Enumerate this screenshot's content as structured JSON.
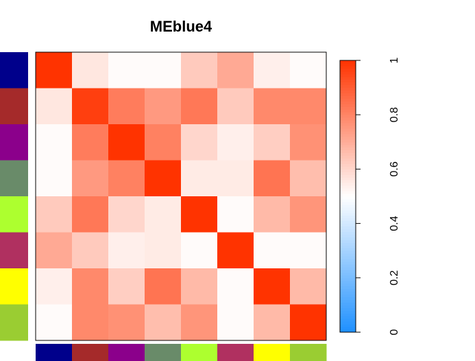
{
  "chart_data": {
    "type": "heatmap",
    "title": "MEblue4",
    "rows": 8,
    "cols": 8,
    "module_colors": [
      "#00008b",
      "#a52a2a",
      "#8b008b",
      "#698b69",
      "#adff2f",
      "#b03060",
      "#ffff00",
      "#9acd32"
    ],
    "values": [
      [
        1.0,
        0.56,
        0.51,
        0.51,
        0.63,
        0.71,
        0.54,
        0.51
      ],
      [
        0.56,
        0.97,
        0.82,
        0.75,
        0.83,
        0.63,
        0.79,
        0.79
      ],
      [
        0.51,
        0.82,
        1.0,
        0.81,
        0.6,
        0.54,
        0.62,
        0.77
      ],
      [
        0.51,
        0.75,
        0.81,
        1.0,
        0.55,
        0.55,
        0.84,
        0.66
      ],
      [
        0.63,
        0.83,
        0.6,
        0.55,
        1.0,
        0.51,
        0.67,
        0.76
      ],
      [
        0.71,
        0.63,
        0.54,
        0.55,
        0.51,
        1.0,
        0.51,
        0.51
      ],
      [
        0.54,
        0.79,
        0.62,
        0.84,
        0.67,
        0.51,
        1.0,
        0.67
      ],
      [
        0.51,
        0.79,
        0.77,
        0.66,
        0.76,
        0.51,
        0.67,
        1.0
      ]
    ],
    "colorscale": {
      "min": 0,
      "max": 1,
      "low": "#1e90ff",
      "mid": "#ffffff",
      "high": "#ff3300",
      "mid_value": 0.5,
      "ticks": [
        "0",
        "0.2",
        "0.4",
        "0.6",
        "0.8",
        "1"
      ]
    },
    "legend_position": "right"
  }
}
